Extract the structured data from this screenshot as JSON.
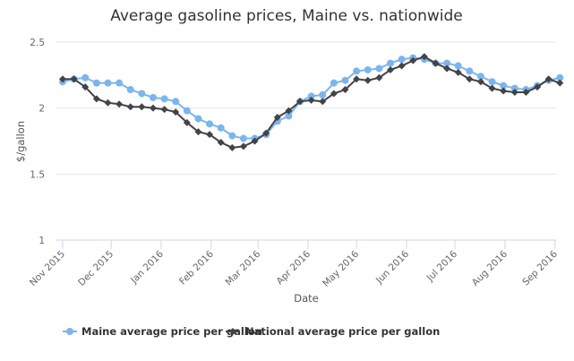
{
  "chart_data": {
    "type": "line",
    "title": "Average gasoline prices, Maine vs. nationwide",
    "xlabel": "Date",
    "ylabel": "$/gallon",
    "ylim": [
      1,
      2.5
    ],
    "yticks": [
      "1",
      "1.5",
      "2",
      "2.5"
    ],
    "ytick_values": [
      1,
      1.5,
      2,
      2.5
    ],
    "xticks": [
      "Nov 2015",
      "Dec 2015",
      "Jan 2016",
      "Feb 2016",
      "Mar 2016",
      "Apr 2016",
      "May 2016",
      "Jun 2016",
      "Jul 2016",
      "Aug 2016",
      "Sep 2016"
    ],
    "xtick_weeks": [
      0,
      4.29,
      8.71,
      13.14,
      17.29,
      21.71,
      26,
      30.43,
      34.71,
      39.14,
      43.57
    ],
    "grid": true,
    "legend": "bottom",
    "x_unit": "weekly from Nov 2 2015",
    "series": [
      {
        "name": "Maine average price per gallon",
        "color": "#7cb5ec",
        "marker": "circle",
        "values": [
          2.2,
          2.22,
          2.23,
          2.19,
          2.19,
          2.19,
          2.14,
          2.11,
          2.08,
          2.07,
          2.05,
          1.98,
          1.92,
          1.88,
          1.85,
          1.79,
          1.77,
          1.77,
          1.8,
          1.9,
          1.94,
          2.05,
          2.09,
          2.1,
          2.19,
          2.21,
          2.28,
          2.29,
          2.3,
          2.34,
          2.37,
          2.38,
          2.37,
          2.34,
          2.34,
          2.32,
          2.28,
          2.24,
          2.2,
          2.17,
          2.15,
          2.14,
          2.17,
          2.21,
          2.23
        ]
      },
      {
        "name": "National average price per gallon",
        "color": "#434348",
        "marker": "diamond",
        "values": [
          2.22,
          2.22,
          2.16,
          2.07,
          2.04,
          2.03,
          2.01,
          2.01,
          2.0,
          1.99,
          1.97,
          1.89,
          1.82,
          1.8,
          1.74,
          1.7,
          1.71,
          1.75,
          1.81,
          1.93,
          1.98,
          2.05,
          2.06,
          2.05,
          2.11,
          2.14,
          2.22,
          2.21,
          2.23,
          2.29,
          2.32,
          2.36,
          2.39,
          2.34,
          2.3,
          2.27,
          2.22,
          2.2,
          2.15,
          2.13,
          2.12,
          2.12,
          2.16,
          2.22,
          2.19
        ]
      }
    ]
  }
}
